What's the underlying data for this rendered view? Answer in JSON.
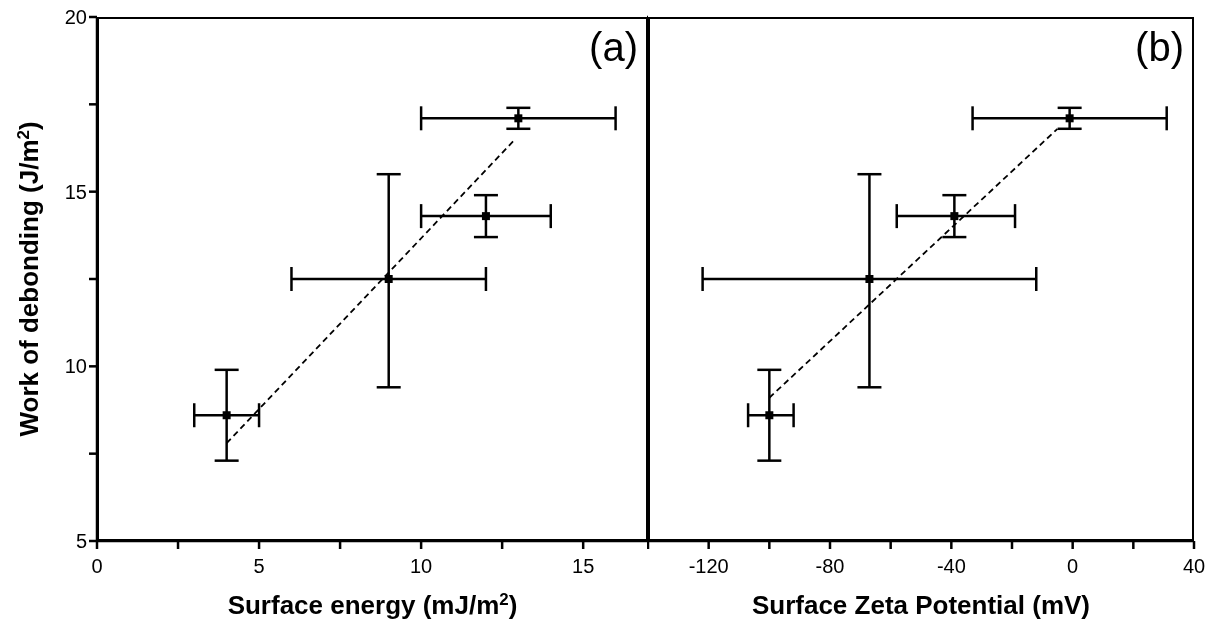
{
  "chart_data": [
    {
      "type": "scatter",
      "xlabel": "Surface energy (mJ/m$^{2}$)",
      "ylabel": "Work of debonding (J/m$^{2}$)",
      "annotations": [
        "(a)"
      ],
      "xlim": [
        0,
        17
      ],
      "xticks": [
        0,
        {
          "value": 2.5,
          "label": null
        },
        5,
        {
          "value": 7.5,
          "label": null
        },
        10,
        {
          "value": 12.5,
          "label": null
        },
        15
      ],
      "ylim": [
        5,
        20
      ],
      "yticks": [
        5,
        {
          "value": 7.5,
          "label": null
        },
        10,
        {
          "value": 12.5,
          "label": null
        },
        15,
        {
          "value": 17.5,
          "label": null
        },
        20
      ],
      "series": [
        {
          "type": "scatter",
          "color": "#000000",
          "marker": "square",
          "x": [
            4,
            9,
            12,
            13
          ],
          "values": [
            8.6,
            12.5,
            14.3,
            17.1
          ],
          "xerrors": [
            [
              3,
              5
            ],
            [
              6,
              12
            ],
            [
              10,
              14
            ],
            [
              10,
              16
            ]
          ],
          "errors": [
            [
              7.3,
              9.9
            ],
            [
              9.4,
              15.5
            ],
            [
              13.7,
              14.9
            ],
            [
              16.8,
              17.4
            ]
          ]
        },
        {
          "type": "line",
          "color": "#000000",
          "line_style": "dashed",
          "marker": "none",
          "x": [
            4.0,
            12.9
          ],
          "values": [
            7.8,
            16.5
          ]
        }
      ]
    },
    {
      "type": "scatter",
      "xlabel": "Surface Zeta Potential (mV)",
      "annotations": [
        "(b)"
      ],
      "xlim": [
        -140,
        40
      ],
      "xticks": [
        {
          "value": -140,
          "label": null
        },
        -120,
        {
          "value": -100,
          "label": null
        },
        -80,
        {
          "value": -60,
          "label": null
        },
        -40,
        {
          "value": -20,
          "label": null
        },
        0,
        {
          "value": 20,
          "label": null
        },
        40
      ],
      "ylim": [
        5,
        20
      ],
      "yticks": [
        5,
        {
          "value": 7.5,
          "label": null
        },
        10,
        {
          "value": 12.5,
          "label": null
        },
        15,
        {
          "value": 17.5,
          "label": null
        },
        20
      ],
      "tick_labels": "x",
      "series": [
        {
          "type": "scatter",
          "color": "#000000",
          "marker": "square",
          "x": [
            -100,
            -67,
            -39,
            -1
          ],
          "values": [
            8.6,
            12.5,
            14.3,
            17.1
          ],
          "xerrors": [
            [
              -107,
              -92
            ],
            [
              -122,
              -12
            ],
            [
              -58,
              -19
            ],
            [
              -33,
              31
            ]
          ],
          "errors": [
            [
              7.3,
              9.9
            ],
            [
              9.4,
              15.5
            ],
            [
              13.7,
              14.9
            ],
            [
              16.8,
              17.4
            ]
          ]
        },
        {
          "type": "line",
          "color": "#000000",
          "line_style": "dashed",
          "marker": "none",
          "x": [
            -100,
            -5
          ],
          "values": [
            9.1,
            16.8
          ]
        }
      ]
    }
  ]
}
